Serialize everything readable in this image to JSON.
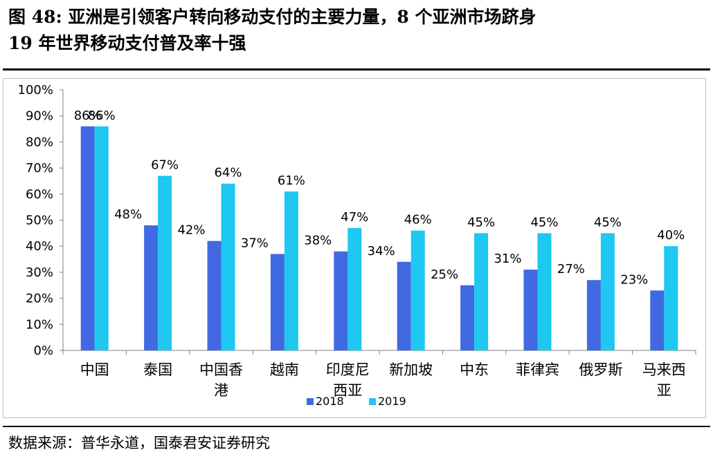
{
  "figure": {
    "title_line1": "图 48:  亚洲是引领客户转向移动支付的主要力量，8 个亚洲市场跻身",
    "title_line2": "19 年世界移动支付普及率十强",
    "source": "数据来源：普华永道，国泰君安证券研究"
  },
  "chart_data": {
    "type": "bar",
    "title": "",
    "xlabel": "",
    "ylabel": "",
    "ylim": [
      0,
      100
    ],
    "yticks": [
      "0%",
      "10%",
      "20%",
      "30%",
      "40%",
      "50%",
      "60%",
      "70%",
      "80%",
      "90%",
      "100%"
    ],
    "categories": [
      [
        "中国"
      ],
      [
        "泰国"
      ],
      [
        "中国香",
        "港"
      ],
      [
        "越南"
      ],
      [
        "印度尼",
        "西亚"
      ],
      [
        "新加坡"
      ],
      [
        "中东"
      ],
      [
        "菲律宾"
      ],
      [
        "俄罗斯"
      ],
      [
        "马来西",
        "亚"
      ]
    ],
    "series": [
      {
        "name": "2018",
        "color": "#4169E1",
        "values": [
          86,
          48,
          42,
          37,
          38,
          34,
          25,
          31,
          27,
          23
        ],
        "labels": [
          "86%",
          "48%",
          "42%",
          "37%",
          "38%",
          "34%",
          "25%",
          "31%",
          "27%",
          "23%"
        ]
      },
      {
        "name": "2019",
        "color": "#1EC8F0",
        "values": [
          86,
          67,
          64,
          61,
          47,
          46,
          45,
          45,
          45,
          40
        ],
        "labels": [
          "86%",
          "67%",
          "64%",
          "61%",
          "47%",
          "46%",
          "45%",
          "45%",
          "45%",
          "40%"
        ]
      }
    ],
    "legend_position": "bottom",
    "grid": false
  }
}
